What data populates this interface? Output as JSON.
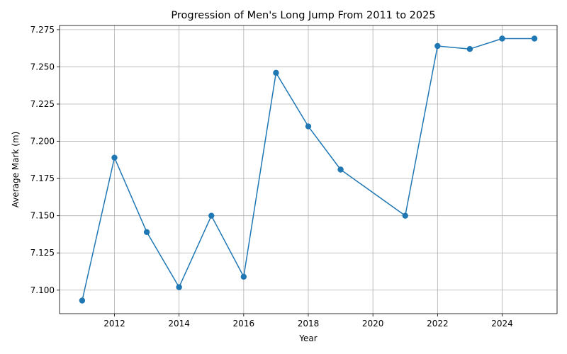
{
  "chart_data": {
    "type": "line",
    "title": "Progression of Men's Long Jump From 2011 to 2025",
    "xlabel": "Year",
    "ylabel": "Average Mark (m)",
    "x": [
      2011,
      2012,
      2013,
      2014,
      2015,
      2016,
      2017,
      2018,
      2019,
      2021,
      2022,
      2023,
      2024,
      2025
    ],
    "series": [
      {
        "values": [
          7.093,
          7.189,
          7.139,
          7.102,
          7.15,
          7.109,
          7.246,
          7.21,
          7.181,
          7.15,
          7.264,
          7.262,
          7.269,
          7.269
        ]
      }
    ],
    "xlim": [
      2010.3,
      2025.7
    ],
    "ylim": [
      7.0842,
      7.2778
    ],
    "xticks": [
      2012,
      2014,
      2016,
      2018,
      2020,
      2022,
      2024
    ],
    "yticks": [
      7.1,
      7.125,
      7.15,
      7.175,
      7.2,
      7.225,
      7.25,
      7.275
    ],
    "ytick_labels": [
      "7.100",
      "7.125",
      "7.150",
      "7.175",
      "7.200",
      "7.225",
      "7.250",
      "7.275"
    ],
    "grid": true,
    "line_color": "#1f77b4",
    "marker": "circle"
  }
}
